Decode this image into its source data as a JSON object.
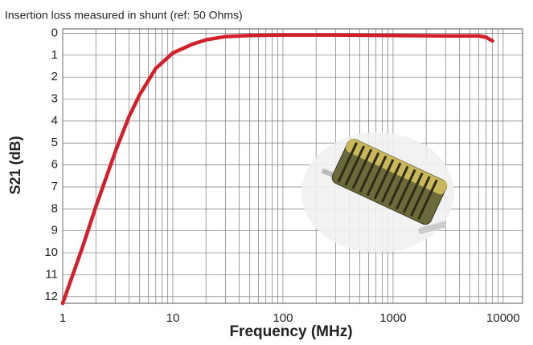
{
  "chart_data": {
    "type": "line",
    "title": "Insertion loss measured in shunt (ref: 50 Ohms)",
    "x_label": "Frequency (MHz)",
    "y_label": "S21 (dB)",
    "x": [
      1,
      1.5,
      2,
      3,
      4,
      5,
      7,
      10,
      15,
      20,
      30,
      50,
      100,
      300,
      1000,
      3000,
      6000,
      7000,
      8000
    ],
    "series": [
      {
        "name": "S21",
        "color": "#d31f2b",
        "values": [
          12.3,
          9.8,
          7.9,
          5.4,
          3.8,
          2.8,
          1.6,
          0.9,
          0.5,
          0.3,
          0.15,
          0.1,
          0.08,
          0.08,
          0.1,
          0.12,
          0.12,
          0.18,
          0.35
        ]
      }
    ],
    "x_log": true,
    "xlim": [
      1,
      15000
    ],
    "xticks": [
      1,
      10,
      100,
      1000,
      10000
    ],
    "xminorticks": [
      2,
      3,
      4,
      5,
      6,
      7,
      8,
      9,
      20,
      30,
      40,
      50,
      60,
      70,
      80,
      90,
      200,
      300,
      400,
      500,
      600,
      700,
      800,
      900,
      2000,
      3000,
      4000,
      5000,
      6000,
      7000,
      8000,
      9000
    ],
    "ylim": [
      12.3,
      -0.2
    ],
    "yticks": [
      0,
      1,
      2,
      3,
      4,
      5,
      6,
      7,
      8,
      9,
      10,
      11,
      12
    ],
    "grid": true
  }
}
